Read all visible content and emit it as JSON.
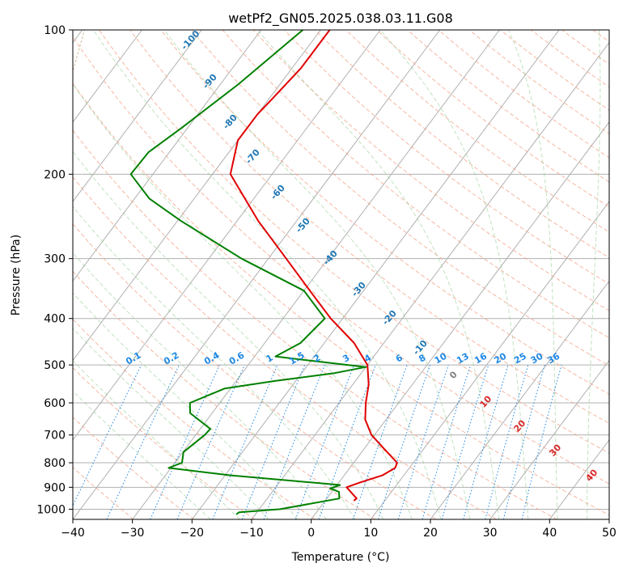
{
  "chart_data": {
    "type": "skew-t",
    "title": "wetPf2_GN05.2025.038.03.11.G08",
    "xlabel": "Temperature (°C)",
    "ylabel": "Pressure (hPa)",
    "xlim": [
      -40,
      50
    ],
    "ylim": [
      1050,
      100
    ],
    "y_scale": "log",
    "grid": true,
    "x_ticks": [
      "−40",
      "−30",
      "−20",
      "−10",
      "0",
      "10",
      "20",
      "30",
      "40",
      "50"
    ],
    "y_ticks": [
      "100",
      "200",
      "300",
      "400",
      "500",
      "600",
      "700",
      "800",
      "900",
      "1000"
    ],
    "isotherm_labels": [
      "-100",
      "-90",
      "-80",
      "-70",
      "-60",
      "-50",
      "-40",
      "-30",
      "-20",
      "-10"
    ],
    "mixing_ratio_labels": [
      "0.1",
      "0.2",
      "0.4",
      "0.6",
      "1",
      "1.5",
      "2",
      "3",
      "4",
      "6",
      "8",
      "10",
      "13",
      "16",
      "20",
      "25",
      "30",
      "36"
    ],
    "moist_adiabat_labels": [
      "0",
      "10",
      "20",
      "30",
      "40"
    ],
    "colors": {
      "temperature": "#e00000",
      "dewpoint": "#008000",
      "isotherm_label": "#1f77b4",
      "mixing_ratio": "#1e88e5",
      "moist_adiabat_label": "#d62728",
      "zero_label": "#808080"
    },
    "series": [
      {
        "name": "Temperature",
        "points": [
          {
            "p": 100,
            "t": -58.5
          },
          {
            "p": 120,
            "t": -58.5
          },
          {
            "p": 140,
            "t": -59.5
          },
          {
            "p": 150,
            "t": -60
          },
          {
            "p": 170,
            "t": -60
          },
          {
            "p": 200,
            "t": -57
          },
          {
            "p": 250,
            "t": -46.5
          },
          {
            "p": 300,
            "t": -37
          },
          {
            "p": 350,
            "t": -29
          },
          {
            "p": 400,
            "t": -22
          },
          {
            "p": 450,
            "t": -15
          },
          {
            "p": 500,
            "t": -10
          },
          {
            "p": 550,
            "t": -7.3
          },
          {
            "p": 600,
            "t": -5.5
          },
          {
            "p": 650,
            "t": -3.5
          },
          {
            "p": 700,
            "t": -0.5
          },
          {
            "p": 750,
            "t": 3.5
          },
          {
            "p": 800,
            "t": 7.3
          },
          {
            "p": 820,
            "t": 7.6
          },
          {
            "p": 850,
            "t": 6.4
          },
          {
            "p": 880,
            "t": 3.5
          },
          {
            "p": 900,
            "t": 1.9
          },
          {
            "p": 950,
            "t": 5.0
          },
          {
            "p": 960,
            "t": 4.8
          }
        ]
      },
      {
        "name": "Dewpoint",
        "points": [
          {
            "p": 100,
            "t": -63
          },
          {
            "p": 130,
            "t": -67
          },
          {
            "p": 160,
            "t": -71
          },
          {
            "p": 180,
            "t": -73.5
          },
          {
            "p": 200,
            "t": -73.7
          },
          {
            "p": 225,
            "t": -67.5
          },
          {
            "p": 250,
            "t": -59.5
          },
          {
            "p": 300,
            "t": -44.5
          },
          {
            "p": 350,
            "t": -30
          },
          {
            "p": 400,
            "t": -23
          },
          {
            "p": 450,
            "t": -24
          },
          {
            "p": 480,
            "t": -26.5
          },
          {
            "p": 490,
            "t": -20
          },
          {
            "p": 505,
            "t": -10
          },
          {
            "p": 520,
            "t": -14.5
          },
          {
            "p": 540,
            "t": -23.5
          },
          {
            "p": 560,
            "t": -31
          },
          {
            "p": 600,
            "t": -35
          },
          {
            "p": 630,
            "t": -33.7
          },
          {
            "p": 680,
            "t": -28.3
          },
          {
            "p": 700,
            "t": -28.5
          },
          {
            "p": 760,
            "t": -29.9
          },
          {
            "p": 800,
            "t": -28.8
          },
          {
            "p": 820,
            "t": -30.4
          },
          {
            "p": 850,
            "t": -19
          },
          {
            "p": 890,
            "t": 0.5
          },
          {
            "p": 905,
            "t": -0.7
          },
          {
            "p": 920,
            "t": 1.2
          },
          {
            "p": 950,
            "t": 2.1
          },
          {
            "p": 1000,
            "t": -6.5
          },
          {
            "p": 1015,
            "t": -13.0
          },
          {
            "p": 1025,
            "t": -13.2
          }
        ]
      }
    ]
  }
}
